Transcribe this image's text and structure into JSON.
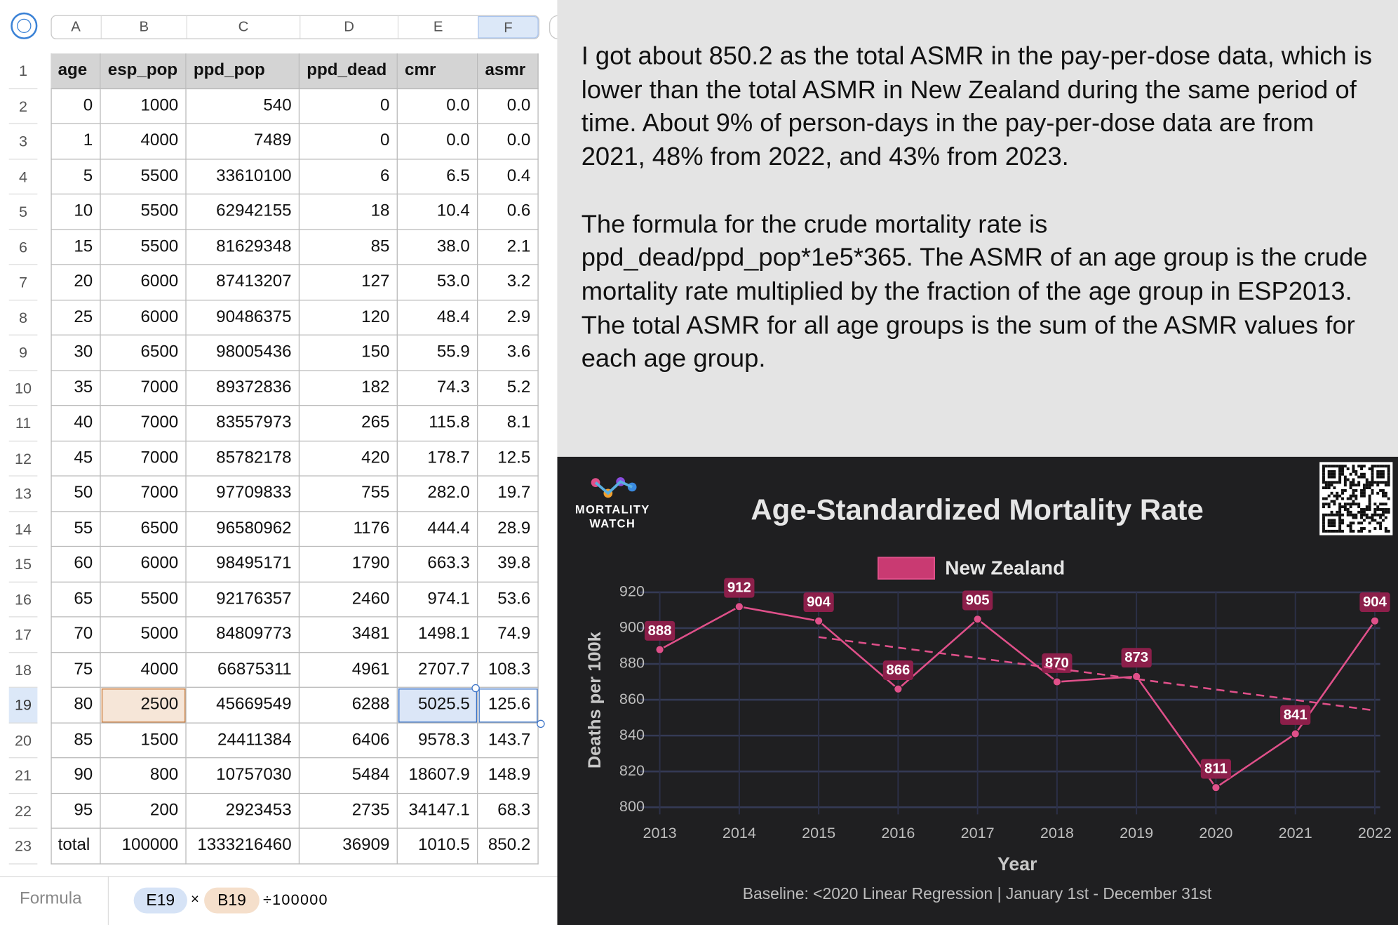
{
  "sheet": {
    "columns": [
      "A",
      "B",
      "C",
      "D",
      "E",
      "F"
    ],
    "row_numbers": [
      "1",
      "2",
      "3",
      "4",
      "5",
      "6",
      "7",
      "8",
      "9",
      "10",
      "11",
      "12",
      "13",
      "14",
      "15",
      "16",
      "17",
      "18",
      "19",
      "20",
      "21",
      "22",
      "23"
    ],
    "rows": [
      [
        "age",
        "esp_pop",
        "ppd_pop",
        "ppd_dead",
        "cmr",
        "asmr"
      ],
      [
        "0",
        "1000",
        "540",
        "0",
        "0.0",
        "0.0"
      ],
      [
        "1",
        "4000",
        "7489",
        "0",
        "0.0",
        "0.0"
      ],
      [
        "5",
        "5500",
        "33610100",
        "6",
        "6.5",
        "0.4"
      ],
      [
        "10",
        "5500",
        "62942155",
        "18",
        "10.4",
        "0.6"
      ],
      [
        "15",
        "5500",
        "81629348",
        "85",
        "38.0",
        "2.1"
      ],
      [
        "20",
        "6000",
        "87413207",
        "127",
        "53.0",
        "3.2"
      ],
      [
        "25",
        "6000",
        "90486375",
        "120",
        "48.4",
        "2.9"
      ],
      [
        "30",
        "6500",
        "98005436",
        "150",
        "55.9",
        "3.6"
      ],
      [
        "35",
        "7000",
        "89372836",
        "182",
        "74.3",
        "5.2"
      ],
      [
        "40",
        "7000",
        "83557973",
        "265",
        "115.8",
        "8.1"
      ],
      [
        "45",
        "7000",
        "85782178",
        "420",
        "178.7",
        "12.5"
      ],
      [
        "50",
        "7000",
        "97709833",
        "755",
        "282.0",
        "19.7"
      ],
      [
        "55",
        "6500",
        "96580962",
        "1176",
        "444.4",
        "28.9"
      ],
      [
        "60",
        "6000",
        "98495171",
        "1790",
        "663.3",
        "39.8"
      ],
      [
        "65",
        "5500",
        "92176357",
        "2460",
        "974.1",
        "53.6"
      ],
      [
        "70",
        "5000",
        "84809773",
        "3481",
        "1498.1",
        "74.9"
      ],
      [
        "75",
        "4000",
        "66875311",
        "4961",
        "2707.7",
        "108.3"
      ],
      [
        "80",
        "2500",
        "45669549",
        "6288",
        "5025.5",
        "125.6"
      ],
      [
        "85",
        "1500",
        "24411384",
        "6406",
        "9578.3",
        "143.7"
      ],
      [
        "90",
        "800",
        "10757030",
        "5484",
        "18607.9",
        "148.9"
      ],
      [
        "95",
        "200",
        "2923453",
        "2735",
        "34147.1",
        "68.3"
      ],
      [
        "total",
        "100000",
        "1333216460",
        "36909",
        "1010.5",
        "850.2"
      ]
    ]
  },
  "formula": {
    "label": "Formula",
    "tokens": [
      "E19",
      "×",
      "B19",
      "÷100000"
    ]
  },
  "note": {
    "paragraphs": [
      "I got about 850.2 as the total ASMR in the pay-per-dose data, which is lower than the total ASMR in New Zealand during the same period of time. About 9% of person-days in the pay-per-dose data are from 2021, 48% from 2022, and 43% from 2023.",
      "The formula for the crude mortality rate is ppd_dead/ppd_pop*1e5*365. The ASMR of an age group is the crude mortality rate multiplied by the fraction of the age group in ESP2013. The total ASMR for all age groups is the sum of the ASMR values for each age group."
    ]
  },
  "chart_data": {
    "type": "line",
    "logo": [
      "MORTALITY",
      "WATCH"
    ],
    "title": "Age-Standardized Mortality Rate",
    "x_label": "Year",
    "y_label": "Deaths per 100k",
    "footer": "Baseline: <2020 Linear Regression | January 1st - December 31st",
    "x": [
      2013,
      2014,
      2015,
      2016,
      2017,
      2018,
      2019,
      2020,
      2021,
      2022
    ],
    "series": [
      {
        "name": "New Zealand",
        "color": "#e0508a",
        "label_color": "#8c1f4a",
        "legend_color": "#c93a72",
        "values": [
          888,
          912,
          904,
          866,
          905,
          870,
          873,
          811,
          841,
          904
        ]
      },
      {
        "color": "#e0508a",
        "dashed": true,
        "values": [
          null,
          null,
          895,
          889.1,
          883.3,
          877.4,
          871.6,
          865.7,
          859.9,
          854
        ]
      }
    ],
    "xlim": [
      2013,
      2022
    ],
    "xticks": [
      2013,
      2014,
      2015,
      2016,
      2017,
      2018,
      2019,
      2020,
      2021,
      2022
    ],
    "ylim": [
      800,
      920
    ],
    "yticks": [
      800,
      820,
      840,
      860,
      880,
      900,
      920
    ],
    "grid": true
  }
}
